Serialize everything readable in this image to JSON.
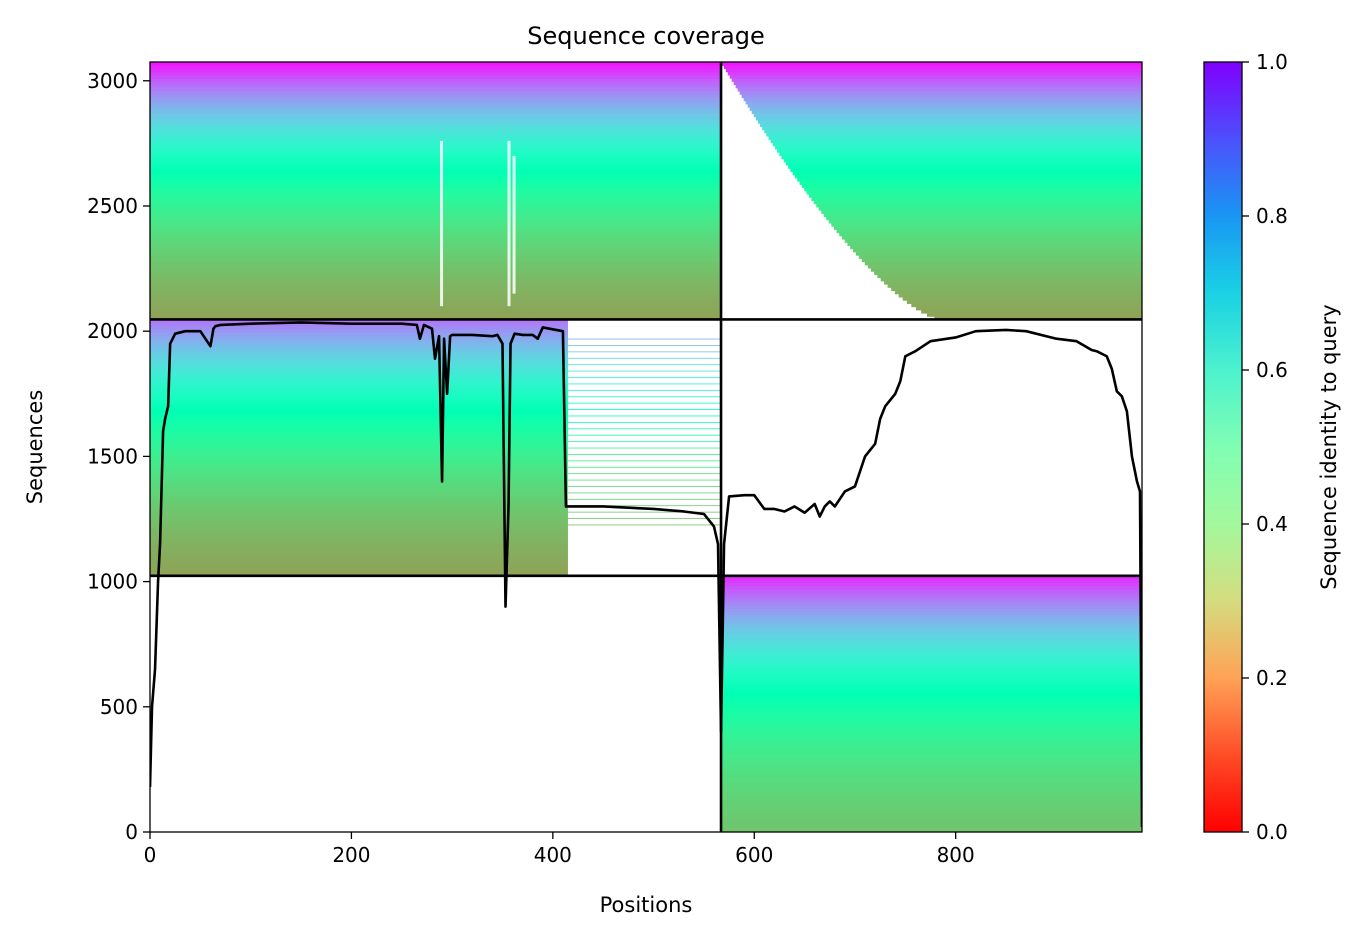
{
  "chart_data": {
    "type": "heatmap",
    "title": "Sequence coverage",
    "xlabel": "Positions",
    "ylabel": "Sequences",
    "xlim": [
      0,
      985
    ],
    "ylim": [
      0,
      3075
    ],
    "xticks": [
      0,
      200,
      400,
      600,
      800
    ],
    "yticks": [
      0,
      500,
      1000,
      1500,
      2000,
      2500,
      3000
    ],
    "grid": false,
    "colorbar": {
      "label": "Sequence identity to query",
      "range": [
        0,
        1
      ],
      "ticks": [
        0.0,
        0.2,
        0.4,
        0.6,
        0.8,
        1.0
      ],
      "colormap": "rainbow_r"
    },
    "chain_boundaries": {
      "x": [
        567
      ],
      "y": [
        1023,
        2047
      ]
    },
    "blocks": [
      {
        "x": [
          0,
          567
        ],
        "y": [
          2047,
          3075
        ],
        "identity_bottom": 0.22,
        "identity_top": 0.98,
        "coverage_start": 0
      },
      {
        "x": [
          567,
          985
        ],
        "y": [
          2047,
          3075
        ],
        "identity_bottom": 0.22,
        "identity_top": 0.98,
        "coverage_start": 785
      },
      {
        "x": [
          0,
          567
        ],
        "y": [
          1023,
          2047
        ],
        "identity_bottom": 0.22,
        "identity_top": 0.85,
        "coverage_end": 415
      },
      {
        "x": [
          567,
          985
        ],
        "y": [
          0,
          1023
        ],
        "identity_bottom": 0.28,
        "identity_top": 0.95,
        "coverage_start": 567
      }
    ],
    "coverage_line": {
      "x": [
        0,
        2,
        5,
        8,
        10,
        13,
        15,
        18,
        20,
        25,
        35,
        50,
        60,
        63,
        65,
        70,
        100,
        150,
        200,
        250,
        265,
        268,
        272,
        280,
        283,
        287,
        290,
        292,
        295,
        298,
        300,
        320,
        340,
        345,
        350,
        353,
        356,
        358,
        362,
        370,
        380,
        385,
        390,
        410,
        413,
        418,
        430,
        450,
        500,
        530,
        550,
        560,
        564,
        567,
        570,
        575,
        590,
        600,
        610,
        620,
        630,
        640,
        650,
        660,
        665,
        670,
        675,
        680,
        690,
        700,
        710,
        720,
        725,
        730,
        740,
        745,
        750,
        760,
        775,
        800,
        820,
        850,
        870,
        900,
        920,
        935,
        940,
        950,
        955,
        960,
        965,
        970,
        975,
        980,
        983,
        985
      ],
      "y": [
        180,
        500,
        650,
        1000,
        1150,
        1600,
        1650,
        1700,
        1950,
        1990,
        2000,
        2000,
        1940,
        2010,
        2020,
        2025,
        2030,
        2035,
        2030,
        2030,
        2025,
        1970,
        2025,
        2010,
        1890,
        1980,
        1400,
        1970,
        1750,
        1980,
        1985,
        1985,
        1980,
        1985,
        1950,
        900,
        1300,
        1950,
        1990,
        1985,
        1985,
        1970,
        2015,
        2000,
        1300,
        1300,
        1300,
        1300,
        1290,
        1280,
        1270,
        1220,
        1150,
        400,
        1150,
        1340,
        1345,
        1345,
        1290,
        1290,
        1280,
        1300,
        1275,
        1310,
        1260,
        1300,
        1320,
        1300,
        1360,
        1380,
        1500,
        1550,
        1650,
        1700,
        1750,
        1800,
        1900,
        1920,
        1960,
        1975,
        2000,
        2005,
        2000,
        1970,
        1960,
        1925,
        1920,
        1900,
        1850,
        1760,
        1740,
        1680,
        1500,
        1400,
        1360,
        20
      ]
    }
  }
}
